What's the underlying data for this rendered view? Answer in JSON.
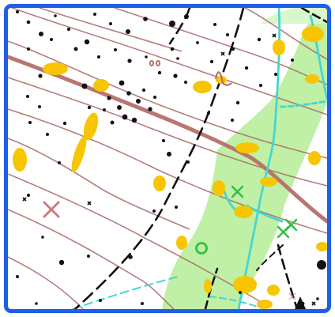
{
  "map": {
    "colors": {
      "border": "#1f5ee6",
      "background": "#ffffff",
      "vegetation": "#bff0a6",
      "contour": "#a86a64",
      "major_path": "#b66f69",
      "stream": "#46d6d4",
      "path": "#111111",
      "yellow": "#f7c600",
      "marker_red": "#cf7a79",
      "marker_green": "#32c043"
    },
    "symbols": [
      "contour-lines",
      "rock-dots",
      "open-area-patches",
      "vegetation-area",
      "streams",
      "dashed-paths",
      "x-marker",
      "circle-marker",
      "triangle-marker"
    ]
  }
}
